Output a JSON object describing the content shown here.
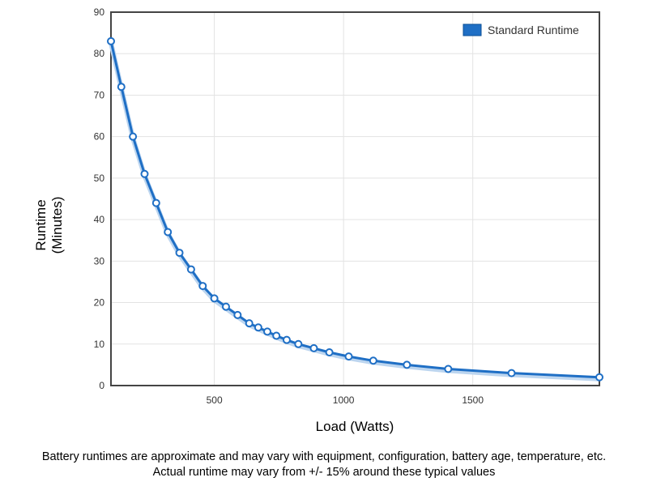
{
  "chart_data": {
    "type": "line",
    "xlabel": "Load (Watts)",
    "ylabel_lines": [
      "Runtime",
      "(Minutes)"
    ],
    "xlim": [
      100,
      1990
    ],
    "ylim": [
      0,
      90
    ],
    "x_ticks": [
      500,
      1000,
      1500
    ],
    "y_ticks": [
      0,
      10,
      20,
      30,
      40,
      50,
      60,
      70,
      80,
      90
    ],
    "grid": true,
    "legend": "top-right",
    "series": [
      {
        "name": "Standard Runtime",
        "color": "#1f6fc5",
        "x": [
          100,
          140,
          185,
          230,
          275,
          320,
          365,
          410,
          455,
          500,
          545,
          590,
          635,
          670,
          705,
          740,
          780,
          825,
          885,
          945,
          1020,
          1115,
          1245,
          1405,
          1650,
          1990
        ],
        "y": [
          83,
          72,
          60,
          51,
          44,
          37,
          32,
          28,
          24,
          21,
          19,
          17,
          15,
          14,
          13,
          12,
          11,
          10,
          9,
          8,
          7,
          6,
          5,
          4,
          3,
          2
        ]
      }
    ]
  },
  "footnotes": {
    "line1": "Battery runtimes are approximate and may vary with equipment, configuration, battery age, temperature, etc.",
    "line2": "Actual runtime may vary from +/- 15% around these typical values"
  }
}
